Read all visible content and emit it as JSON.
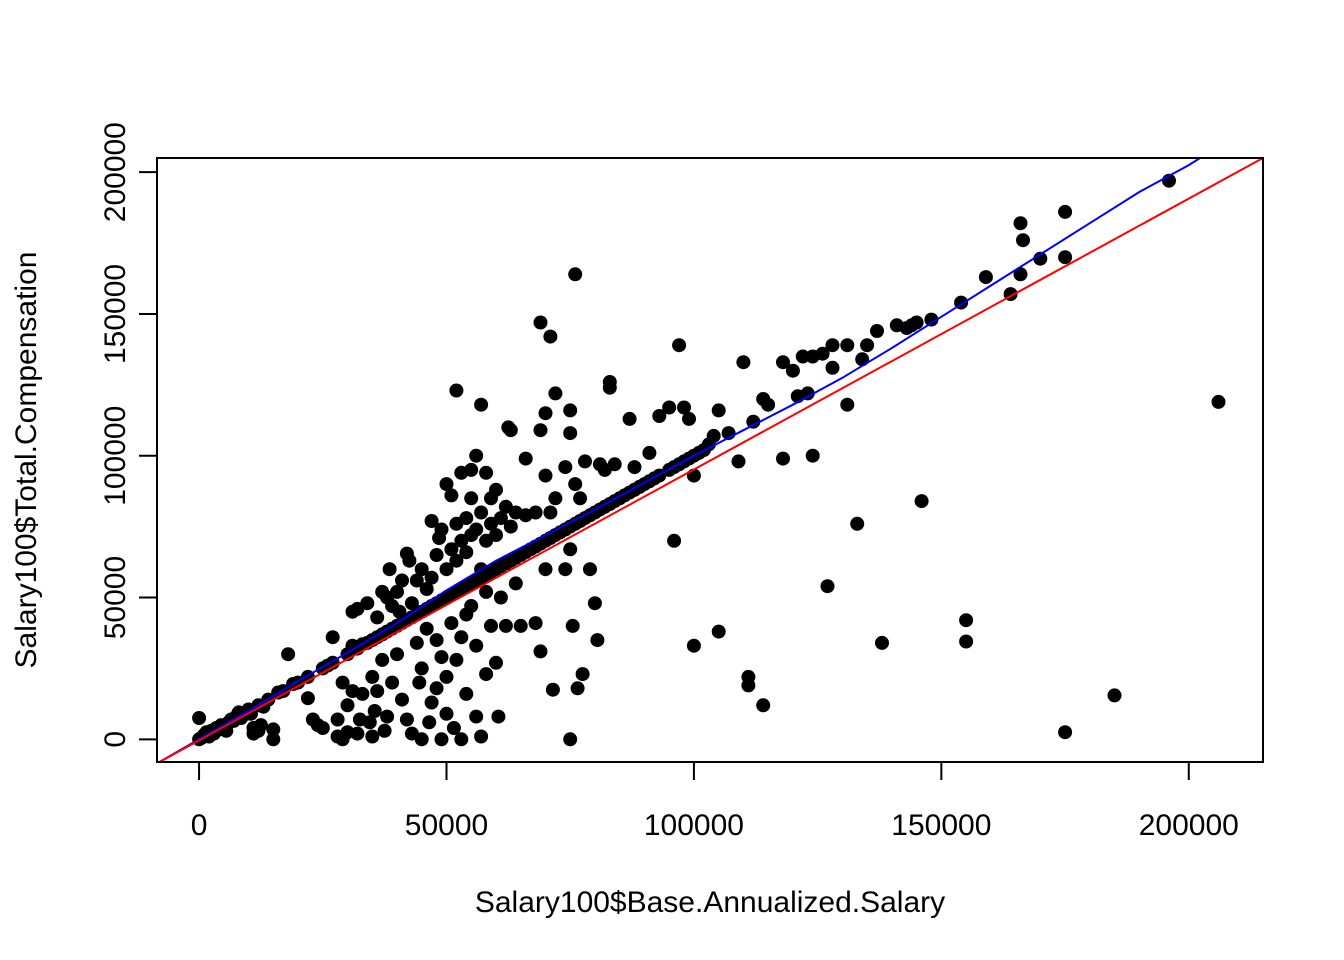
{
  "chart_data": {
    "type": "scatter",
    "title": "",
    "xlabel": "Salary100$Base.Annualized.Salary",
    "ylabel": "Salary100$Total.Compensation",
    "xlim": [
      -8500,
      215000
    ],
    "ylim": [
      -8000,
      205000
    ],
    "x_ticks": [
      0,
      50000,
      100000,
      150000,
      200000
    ],
    "y_ticks": [
      0,
      50000,
      100000,
      150000,
      200000
    ],
    "x_tick_labels": [
      "0",
      "50000",
      "100000",
      "150000",
      "200000"
    ],
    "y_tick_labels": [
      "0",
      "50000",
      "100000",
      "150000",
      "200000"
    ],
    "grid": false,
    "legend": "none",
    "point_color": "#000000",
    "points": [
      [
        0,
        0
      ],
      [
        0,
        7500
      ],
      [
        500,
        500
      ],
      [
        1000,
        1500
      ],
      [
        1500,
        2500
      ],
      [
        2000,
        1000
      ],
      [
        2500,
        3000
      ],
      [
        3000,
        2000
      ],
      [
        3500,
        4000
      ],
      [
        4000,
        3500
      ],
      [
        4500,
        5000
      ],
      [
        5000,
        4500
      ],
      [
        5500,
        3000
      ],
      [
        6000,
        6000
      ],
      [
        6500,
        7000
      ],
      [
        7000,
        6500
      ],
      [
        7500,
        8000
      ],
      [
        8000,
        9500
      ],
      [
        8500,
        7500
      ],
      [
        9000,
        8500
      ],
      [
        10000,
        10500
      ],
      [
        10500,
        9000
      ],
      [
        11000,
        4000
      ],
      [
        11000,
        2000
      ],
      [
        12000,
        12000
      ],
      [
        12000,
        3000
      ],
      [
        12500,
        5000
      ],
      [
        13000,
        11500
      ],
      [
        14000,
        14000
      ],
      [
        15000,
        3500
      ],
      [
        15000,
        0
      ],
      [
        16000,
        16500
      ],
      [
        17000,
        17000
      ],
      [
        18000,
        30000
      ],
      [
        19000,
        19500
      ],
      [
        20000,
        20000
      ],
      [
        22000,
        22000
      ],
      [
        22000,
        14500
      ],
      [
        23000,
        7000
      ],
      [
        24000,
        5000
      ],
      [
        25000,
        4000
      ],
      [
        25000,
        25000
      ],
      [
        26000,
        26000
      ],
      [
        27000,
        27000
      ],
      [
        27000,
        36000
      ],
      [
        28000,
        7000
      ],
      [
        28000,
        1000
      ],
      [
        29000,
        20000
      ],
      [
        29000,
        0
      ],
      [
        30000,
        30000
      ],
      [
        30000,
        12000
      ],
      [
        30000,
        2500
      ],
      [
        31000,
        45000
      ],
      [
        31000,
        33000
      ],
      [
        31000,
        17000
      ],
      [
        32000,
        32000
      ],
      [
        32000,
        46000
      ],
      [
        32000,
        2000
      ],
      [
        32500,
        7000
      ],
      [
        33000,
        33500
      ],
      [
        33000,
        16000
      ],
      [
        34000,
        34000
      ],
      [
        34000,
        48000
      ],
      [
        34500,
        6000
      ],
      [
        35000,
        35000
      ],
      [
        35000,
        22000
      ],
      [
        35000,
        1000
      ],
      [
        35500,
        10000
      ],
      [
        36000,
        36000
      ],
      [
        36000,
        43000
      ],
      [
        36000,
        17000
      ],
      [
        37000,
        37000
      ],
      [
        37000,
        52000
      ],
      [
        37000,
        28000
      ],
      [
        37500,
        3000
      ],
      [
        38000,
        38000
      ],
      [
        38000,
        50000
      ],
      [
        38000,
        8000
      ],
      [
        38500,
        60000
      ],
      [
        39000,
        39000
      ],
      [
        39000,
        47000
      ],
      [
        39000,
        20000
      ],
      [
        40000,
        40000
      ],
      [
        40000,
        52000
      ],
      [
        40000,
        30000
      ],
      [
        40500,
        45000
      ],
      [
        41000,
        41000
      ],
      [
        41000,
        56000
      ],
      [
        41000,
        14000
      ],
      [
        42000,
        42000
      ],
      [
        42000,
        65500
      ],
      [
        42000,
        7000
      ],
      [
        42500,
        63000
      ],
      [
        43000,
        43000
      ],
      [
        43000,
        48000
      ],
      [
        43000,
        2000
      ],
      [
        44000,
        44000
      ],
      [
        44000,
        56000
      ],
      [
        44000,
        34000
      ],
      [
        44500,
        20000
      ],
      [
        45000,
        45000
      ],
      [
        45000,
        60000
      ],
      [
        45000,
        25000
      ],
      [
        45000,
        0
      ],
      [
        46000,
        46000
      ],
      [
        46000,
        53000
      ],
      [
        46000,
        39000
      ],
      [
        46500,
        6000
      ],
      [
        47000,
        47000
      ],
      [
        47000,
        57000
      ],
      [
        47000,
        77000
      ],
      [
        47000,
        13000
      ],
      [
        48000,
        48000
      ],
      [
        48000,
        65000
      ],
      [
        48000,
        35000
      ],
      [
        48000,
        18000
      ],
      [
        48500,
        71000
      ],
      [
        49000,
        49000
      ],
      [
        49000,
        74000
      ],
      [
        49000,
        29000
      ],
      [
        49000,
        0
      ],
      [
        50000,
        50000
      ],
      [
        50000,
        60000
      ],
      [
        50000,
        90000
      ],
      [
        50000,
        22000
      ],
      [
        50000,
        9000
      ],
      [
        51000,
        51000
      ],
      [
        51000,
        67000
      ],
      [
        51000,
        41000
      ],
      [
        51000,
        86000
      ],
      [
        51500,
        4000
      ],
      [
        52000,
        52000
      ],
      [
        52000,
        76000
      ],
      [
        52000,
        63000
      ],
      [
        52000,
        123000
      ],
      [
        52000,
        28000
      ],
      [
        53000,
        53000
      ],
      [
        53000,
        94000
      ],
      [
        53000,
        70000
      ],
      [
        53000,
        36000
      ],
      [
        53000,
        0
      ],
      [
        54000,
        54000
      ],
      [
        54000,
        78000
      ],
      [
        54000,
        66000
      ],
      [
        54000,
        44000
      ],
      [
        54000,
        16000
      ],
      [
        55000,
        55000
      ],
      [
        55000,
        85000
      ],
      [
        55000,
        72000
      ],
      [
        55000,
        95000
      ],
      [
        55000,
        47000
      ],
      [
        56000,
        56000
      ],
      [
        56000,
        74000
      ],
      [
        56000,
        100000
      ],
      [
        56000,
        33000
      ],
      [
        56000,
        8000
      ],
      [
        57000,
        57000
      ],
      [
        57000,
        118000
      ],
      [
        57000,
        80000
      ],
      [
        57000,
        60000
      ],
      [
        57000,
        1000
      ],
      [
        58000,
        58000
      ],
      [
        58000,
        70000
      ],
      [
        58000,
        94000
      ],
      [
        58000,
        52000
      ],
      [
        58000,
        23000
      ],
      [
        59000,
        59000
      ],
      [
        59000,
        76000
      ],
      [
        59000,
        85000
      ],
      [
        59000,
        40000
      ],
      [
        60000,
        60000
      ],
      [
        60000,
        88000
      ],
      [
        60000,
        72000
      ],
      [
        60000,
        27000
      ],
      [
        60500,
        8000
      ],
      [
        61000,
        61000
      ],
      [
        61000,
        78000
      ],
      [
        61000,
        50000
      ],
      [
        62000,
        62000
      ],
      [
        62000,
        82000
      ],
      [
        62000,
        40000
      ],
      [
        62500,
        110000
      ],
      [
        63000,
        63000
      ],
      [
        63000,
        75000
      ],
      [
        63000,
        109000
      ],
      [
        64000,
        64000
      ],
      [
        64000,
        80000
      ],
      [
        64000,
        55000
      ],
      [
        65000,
        65000
      ],
      [
        65000,
        40000
      ],
      [
        66000,
        66000
      ],
      [
        66000,
        79000
      ],
      [
        66000,
        99000
      ],
      [
        67000,
        67000
      ],
      [
        68000,
        68000
      ],
      [
        68000,
        80000
      ],
      [
        68000,
        41000
      ],
      [
        69000,
        69000
      ],
      [
        69000,
        147000
      ],
      [
        69000,
        109000
      ],
      [
        69000,
        31000
      ],
      [
        70000,
        70000
      ],
      [
        70000,
        115000
      ],
      [
        70000,
        93000
      ],
      [
        70000,
        60000
      ],
      [
        71000,
        71000
      ],
      [
        71000,
        142000
      ],
      [
        71000,
        80000
      ],
      [
        71500,
        17500
      ],
      [
        72000,
        72000
      ],
      [
        72000,
        122000
      ],
      [
        72000,
        85000
      ],
      [
        73000,
        73000
      ],
      [
        74000,
        74000
      ],
      [
        74000,
        96000
      ],
      [
        74000,
        60000
      ],
      [
        75000,
        75000
      ],
      [
        75000,
        116000
      ],
      [
        75000,
        108000
      ],
      [
        75000,
        67000
      ],
      [
        75000,
        0
      ],
      [
        75500,
        40000
      ],
      [
        76000,
        76000
      ],
      [
        76000,
        164000
      ],
      [
        76000,
        90000
      ],
      [
        76500,
        18000
      ],
      [
        77000,
        77000
      ],
      [
        77000,
        85000
      ],
      [
        77500,
        23000
      ],
      [
        78000,
        78000
      ],
      [
        78000,
        98000
      ],
      [
        79000,
        79000
      ],
      [
        79000,
        60000
      ],
      [
        80000,
        80000
      ],
      [
        80000,
        48000
      ],
      [
        80500,
        35000
      ],
      [
        81000,
        81000
      ],
      [
        81000,
        97000
      ],
      [
        82000,
        82000
      ],
      [
        82000,
        95000
      ],
      [
        83000,
        83000
      ],
      [
        83000,
        126000
      ],
      [
        83000,
        124000
      ],
      [
        84000,
        84000
      ],
      [
        84000,
        97000
      ],
      [
        85000,
        85000
      ],
      [
        86000,
        86000
      ],
      [
        87000,
        87000
      ],
      [
        87000,
        113000
      ],
      [
        88000,
        88000
      ],
      [
        88000,
        96000
      ],
      [
        89000,
        89000
      ],
      [
        90000,
        90000
      ],
      [
        91000,
        91000
      ],
      [
        91000,
        101000
      ],
      [
        92000,
        92000
      ],
      [
        93000,
        93000
      ],
      [
        93000,
        114000
      ],
      [
        95000,
        95000
      ],
      [
        95000,
        117000
      ],
      [
        96000,
        96000
      ],
      [
        96000,
        70000
      ],
      [
        97000,
        97000
      ],
      [
        97000,
        139000
      ],
      [
        98000,
        98000
      ],
      [
        98000,
        117000
      ],
      [
        99000,
        99000
      ],
      [
        99000,
        113000
      ],
      [
        100000,
        100000
      ],
      [
        100000,
        33000
      ],
      [
        100000,
        93000
      ],
      [
        101000,
        101000
      ],
      [
        102000,
        102000
      ],
      [
        103000,
        104000
      ],
      [
        104000,
        107000
      ],
      [
        105000,
        38000
      ],
      [
        105000,
        116000
      ],
      [
        107000,
        108000
      ],
      [
        109000,
        98000
      ],
      [
        110000,
        133000
      ],
      [
        111000,
        22000
      ],
      [
        111000,
        19000
      ],
      [
        112000,
        112000
      ],
      [
        114000,
        12000
      ],
      [
        114000,
        120000
      ],
      [
        115000,
        118000
      ],
      [
        118000,
        133000
      ],
      [
        118000,
        99000
      ],
      [
        120000,
        130000
      ],
      [
        121000,
        121000
      ],
      [
        122000,
        135000
      ],
      [
        123000,
        122000
      ],
      [
        124000,
        135000
      ],
      [
        124000,
        100000
      ],
      [
        126000,
        136000
      ],
      [
        127000,
        54000
      ],
      [
        128000,
        131000
      ],
      [
        128000,
        139000
      ],
      [
        131000,
        139000
      ],
      [
        131000,
        118000
      ],
      [
        133000,
        76000
      ],
      [
        134000,
        134000
      ],
      [
        135000,
        139000
      ],
      [
        137000,
        144000
      ],
      [
        138000,
        34000
      ],
      [
        141000,
        146000
      ],
      [
        143000,
        145000
      ],
      [
        144000,
        146000
      ],
      [
        145000,
        147000
      ],
      [
        146000,
        84000
      ],
      [
        148000,
        148000
      ],
      [
        154000,
        154000
      ],
      [
        155000,
        42000
      ],
      [
        155000,
        34500
      ],
      [
        159000,
        163000
      ],
      [
        164000,
        157000
      ],
      [
        166000,
        164000
      ],
      [
        166000,
        182000
      ],
      [
        166500,
        176000
      ],
      [
        170000,
        169500
      ],
      [
        175000,
        186000
      ],
      [
        175000,
        170000
      ],
      [
        175000,
        2500
      ],
      [
        185000,
        15500
      ],
      [
        196000,
        197000
      ],
      [
        206000,
        119000
      ]
    ],
    "lines": [
      {
        "color": "#0000ff",
        "points": [
          [
            -8500,
            -8500
          ],
          [
            0,
            0
          ],
          [
            10000,
            10000
          ],
          [
            20000,
            20500
          ],
          [
            30000,
            30500
          ],
          [
            40000,
            41000
          ],
          [
            50000,
            52500
          ],
          [
            60000,
            63000
          ],
          [
            70000,
            72000
          ],
          [
            80000,
            81000
          ],
          [
            90000,
            90500
          ],
          [
            100000,
            100000
          ],
          [
            110000,
            109000
          ],
          [
            120000,
            118000
          ],
          [
            130000,
            127500
          ],
          [
            140000,
            138000
          ],
          [
            150000,
            149000
          ],
          [
            160000,
            160000
          ],
          [
            170000,
            171000
          ],
          [
            180000,
            182000
          ],
          [
            190000,
            193000
          ],
          [
            200000,
            202500
          ],
          [
            205000,
            208000
          ]
        ]
      },
      {
        "color": "#ff0000",
        "points": [
          [
            -8500,
            -8500
          ],
          [
            215000,
            205000
          ]
        ]
      }
    ]
  }
}
